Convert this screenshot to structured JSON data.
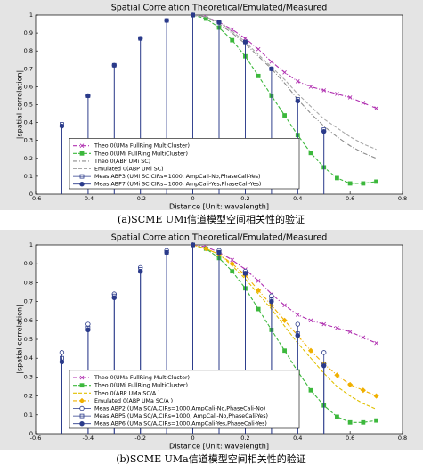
{
  "chart_data": [
    {
      "type": "line",
      "title": "Spatial Correlation:Theoretical/Emulated/Measured",
      "x_label": "Distance [Unit: wavelength]",
      "y_label": "|spatial correlation|",
      "caption": "(a)SCME UMi信道模型空间相关性的验证",
      "xlim": [
        -0.6,
        0.8
      ],
      "xticks": [
        -0.6,
        -0.4,
        -0.2,
        0,
        0.2,
        0.4,
        0.6,
        0.8
      ],
      "ylim": [
        0,
        1
      ],
      "yticks": [
        0,
        0.1,
        0.2,
        0.3,
        0.4,
        0.5,
        0.6,
        0.7,
        0.8,
        0.9,
        1
      ],
      "grid": false,
      "legend": "lower left",
      "series": [
        {
          "name": "Theo 0(UMa FullRing MultiCluster)",
          "color": "#b030b0",
          "style": "dashdot",
          "marker": "x",
          "x": [
            0,
            0.05,
            0.1,
            0.15,
            0.2,
            0.25,
            0.3,
            0.35,
            0.4,
            0.45,
            0.5,
            0.55,
            0.6,
            0.65,
            0.7
          ],
          "values": [
            1,
            0.99,
            0.96,
            0.92,
            0.87,
            0.81,
            0.74,
            0.68,
            0.63,
            0.6,
            0.58,
            0.56,
            0.54,
            0.51,
            0.48
          ]
        },
        {
          "name": "Theo 0(UMi FullRing MultiCluster)",
          "color": "#3cb83c",
          "style": "dashed",
          "marker": "square-filled",
          "x": [
            0,
            0.05,
            0.1,
            0.15,
            0.2,
            0.25,
            0.3,
            0.35,
            0.4,
            0.45,
            0.5,
            0.55,
            0.6,
            0.65,
            0.7
          ],
          "values": [
            1,
            0.98,
            0.93,
            0.86,
            0.77,
            0.66,
            0.55,
            0.44,
            0.33,
            0.23,
            0.15,
            0.09,
            0.06,
            0.06,
            0.07
          ]
        },
        {
          "name": "Theo 0(ABP UMi SC)",
          "color": "#8c8c8c",
          "style": "dashdot",
          "marker": "none",
          "x": [
            0,
            0.05,
            0.1,
            0.15,
            0.2,
            0.25,
            0.3,
            0.35,
            0.4,
            0.45,
            0.5,
            0.55,
            0.6,
            0.65,
            0.7
          ],
          "values": [
            1,
            0.99,
            0.95,
            0.9,
            0.84,
            0.77,
            0.7,
            0.62,
            0.53,
            0.45,
            0.38,
            0.32,
            0.27,
            0.23,
            0.2
          ]
        },
        {
          "name": "Emulated 0(ABP UMi SC)",
          "color": "#a8a8a8",
          "style": "dashed",
          "marker": "none",
          "x": [
            0,
            0.05,
            0.1,
            0.15,
            0.2,
            0.25,
            0.3,
            0.35,
            0.4,
            0.45,
            0.5,
            0.55,
            0.6,
            0.65,
            0.7
          ],
          "values": [
            1,
            0.99,
            0.96,
            0.91,
            0.85,
            0.78,
            0.71,
            0.64,
            0.56,
            0.49,
            0.42,
            0.37,
            0.32,
            0.28,
            0.25
          ]
        },
        {
          "name": "Meas ABP3 (UMi SC,CIRs=1000, AmpCali-No,PhaseCali-Yes)",
          "color": "#2a3a8a",
          "style": "stem",
          "marker": "square",
          "x": [
            -0.5,
            -0.4,
            -0.3,
            -0.2,
            -0.1,
            0,
            0.1,
            0.2,
            0.3,
            0.4,
            0.5
          ],
          "values": [
            0.39,
            0.55,
            0.72,
            0.87,
            0.97,
            1,
            0.96,
            0.85,
            0.7,
            0.53,
            0.36
          ]
        },
        {
          "name": "Meas ABP7 (UMi SC,CIRs=1000, AmpCali-Yes,PhaseCali-Yes)",
          "color": "#2a3a8a",
          "style": "stem",
          "marker": "circle-filled",
          "x": [
            -0.5,
            -0.4,
            -0.3,
            -0.2,
            -0.1,
            0,
            0.1,
            0.2,
            0.3,
            0.4,
            0.5
          ],
          "values": [
            0.38,
            0.55,
            0.72,
            0.87,
            0.97,
            1,
            0.96,
            0.85,
            0.7,
            0.52,
            0.35
          ]
        }
      ]
    },
    {
      "type": "line",
      "title": "Spatial Correlation:Theoretical/Emulated/Measured",
      "x_label": "Distance [Unit: wavelength]",
      "y_label": "|spatial correlation|",
      "caption": "(b)SCME UMa信道模型空间相关性的验证",
      "xlim": [
        -0.6,
        0.8
      ],
      "xticks": [
        -0.6,
        -0.4,
        -0.2,
        0,
        0.2,
        0.4,
        0.6,
        0.8
      ],
      "ylim": [
        0,
        1
      ],
      "yticks": [
        0,
        0.1,
        0.2,
        0.3,
        0.4,
        0.5,
        0.6,
        0.7,
        0.8,
        0.9,
        1
      ],
      "grid": false,
      "legend": "lower left",
      "series": [
        {
          "name": "Theo 0(UMa FullRing MultiCluster)",
          "color": "#b030b0",
          "style": "dashdot",
          "marker": "x",
          "x": [
            0,
            0.05,
            0.1,
            0.15,
            0.2,
            0.25,
            0.3,
            0.35,
            0.4,
            0.45,
            0.5,
            0.55,
            0.6,
            0.65,
            0.7
          ],
          "values": [
            1,
            0.99,
            0.96,
            0.92,
            0.87,
            0.81,
            0.74,
            0.68,
            0.63,
            0.6,
            0.58,
            0.56,
            0.54,
            0.51,
            0.48
          ]
        },
        {
          "name": "Theo 0(UMi FullRing MultiCluster)",
          "color": "#3cb83c",
          "style": "dashed",
          "marker": "square-filled",
          "x": [
            0,
            0.05,
            0.1,
            0.15,
            0.2,
            0.25,
            0.3,
            0.35,
            0.4,
            0.45,
            0.5,
            0.55,
            0.6,
            0.65,
            0.7
          ],
          "values": [
            1,
            0.98,
            0.93,
            0.86,
            0.77,
            0.66,
            0.55,
            0.44,
            0.33,
            0.23,
            0.15,
            0.09,
            0.06,
            0.06,
            0.07
          ]
        },
        {
          "name": "Theo 0(ABP UMa SC/A )",
          "color": "#e0c000",
          "style": "dashed",
          "marker": "none",
          "x": [
            0,
            0.05,
            0.1,
            0.15,
            0.2,
            0.25,
            0.3,
            0.35,
            0.4,
            0.45,
            0.5,
            0.55,
            0.6,
            0.65,
            0.7
          ],
          "values": [
            1,
            0.98,
            0.95,
            0.89,
            0.82,
            0.74,
            0.66,
            0.57,
            0.48,
            0.4,
            0.32,
            0.25,
            0.2,
            0.16,
            0.13
          ]
        },
        {
          "name": "Emulated 0(ABP UMa SC/A )",
          "color": "#f0b000",
          "style": "dashdot",
          "marker": "diamond",
          "x": [
            0,
            0.05,
            0.1,
            0.15,
            0.2,
            0.25,
            0.3,
            0.35,
            0.4,
            0.45,
            0.5,
            0.55,
            0.6,
            0.65,
            0.7
          ],
          "values": [
            1,
            0.98,
            0.95,
            0.9,
            0.84,
            0.76,
            0.68,
            0.6,
            0.52,
            0.44,
            0.37,
            0.31,
            0.26,
            0.23,
            0.2
          ]
        },
        {
          "name": "Meas ABP2 (UMa SC/A,CIRs=1000,AmpCali-No,PhaseCali-No)",
          "color": "#2a3a8a",
          "style": "stem",
          "marker": "circle",
          "x": [
            -0.5,
            -0.4,
            -0.3,
            -0.2,
            -0.1,
            0,
            0.1,
            0.2,
            0.3,
            0.4,
            0.5
          ],
          "values": [
            0.43,
            0.58,
            0.74,
            0.88,
            0.97,
            1,
            0.97,
            0.86,
            0.73,
            0.58,
            0.43
          ]
        },
        {
          "name": "Meas ABP5 (UMa SC/A,CIRs=1000, AmpCali-No,PhaseCali-Yes)",
          "color": "#2a3a8a",
          "style": "stem",
          "marker": "square",
          "x": [
            -0.5,
            -0.4,
            -0.3,
            -0.2,
            -0.1,
            0,
            0.1,
            0.2,
            0.3,
            0.4,
            0.5
          ],
          "values": [
            0.4,
            0.56,
            0.73,
            0.87,
            0.96,
            1,
            0.96,
            0.85,
            0.71,
            0.53,
            0.37
          ]
        },
        {
          "name": "Meas ABP6 (UMa SC/A,CIRs=1000,AmpCali-Yes,PhaseCali-Yes)",
          "color": "#2a3a8a",
          "style": "stem",
          "marker": "circle-filled",
          "x": [
            -0.5,
            -0.4,
            -0.3,
            -0.2,
            -0.1,
            0,
            0.1,
            0.2,
            0.3,
            0.4,
            0.5
          ],
          "values": [
            0.38,
            0.55,
            0.72,
            0.86,
            0.96,
            1,
            0.96,
            0.85,
            0.7,
            0.52,
            0.36
          ]
        }
      ]
    }
  ]
}
